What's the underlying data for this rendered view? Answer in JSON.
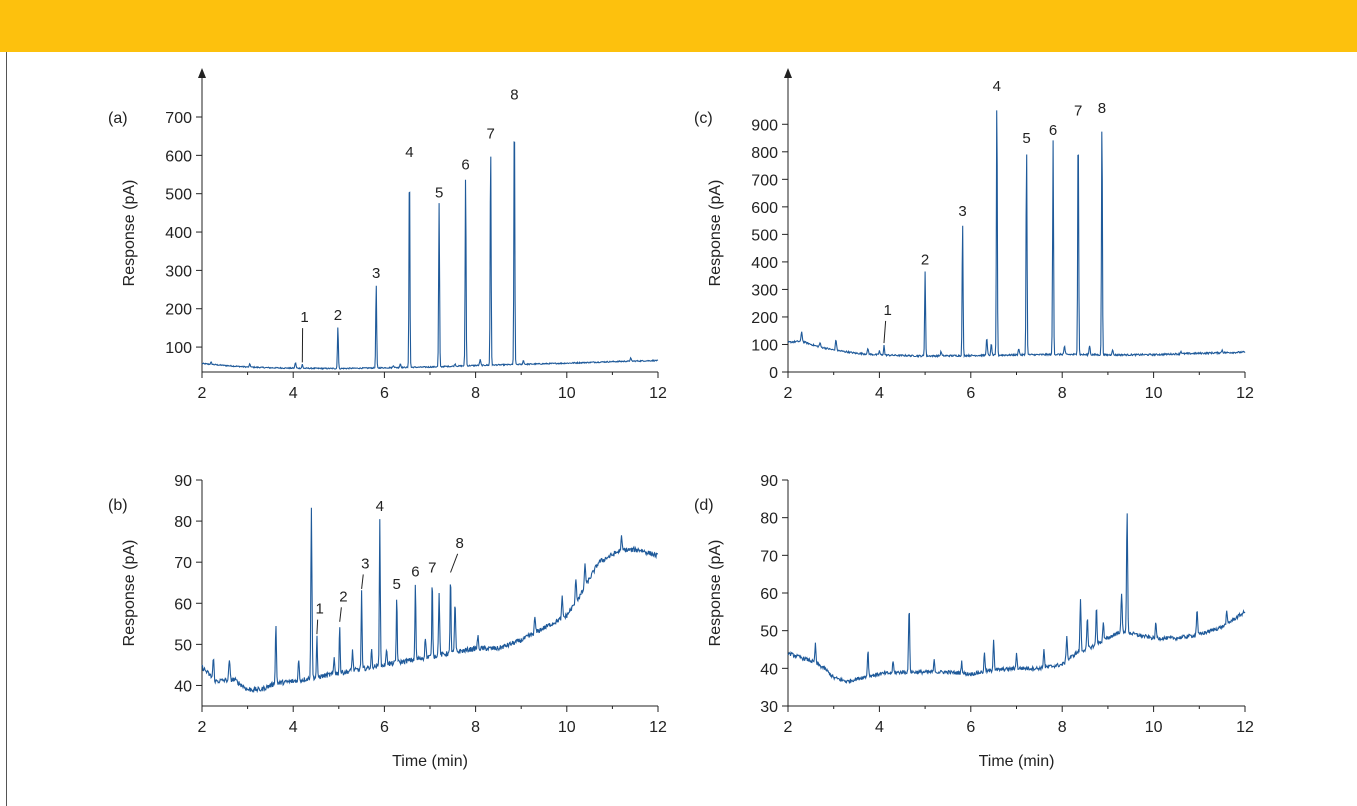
{
  "colors": {
    "band": "#FDC10D",
    "trace": "#1F5A9A",
    "axis": "#222222"
  },
  "chart_data": [
    {
      "panel": "(a)",
      "type": "line",
      "xlabel": "",
      "ylabel": "Response (pA)",
      "xlim": [
        2,
        12
      ],
      "ylim": [
        35,
        760
      ],
      "xticks": [
        2,
        4,
        6,
        8,
        10,
        12
      ],
      "yticks": [
        100,
        200,
        300,
        400,
        500,
        600,
        700
      ],
      "y_arrow": true,
      "grid": false,
      "baseline": [
        [
          2,
          57
        ],
        [
          2.5,
          52
        ],
        [
          3,
          48
        ],
        [
          3.5,
          46
        ],
        [
          4,
          45
        ],
        [
          5,
          44
        ],
        [
          6,
          46
        ],
        [
          7,
          48
        ],
        [
          8,
          52
        ],
        [
          9,
          55
        ],
        [
          10,
          58
        ],
        [
          11,
          62
        ],
        [
          12,
          65
        ]
      ],
      "noise": 1.5,
      "minor_peaks": [
        [
          2.2,
          5
        ],
        [
          3.05,
          8
        ],
        [
          4.05,
          15
        ],
        [
          6.2,
          6
        ],
        [
          6.35,
          10
        ],
        [
          7.55,
          6
        ],
        [
          8.1,
          15
        ],
        [
          9.05,
          10
        ],
        [
          11.4,
          8
        ]
      ],
      "peaks": [
        {
          "label": "1",
          "x": 4.2,
          "y": 55,
          "tx": 4.25,
          "ty": 160
        },
        {
          "label": "2",
          "x": 4.98,
          "y": 155
        },
        {
          "label": "3",
          "x": 5.82,
          "y": 265
        },
        {
          "label": "4",
          "x": 6.55,
          "y": 580
        },
        {
          "label": "5",
          "x": 7.2,
          "y": 475
        },
        {
          "label": "6",
          "x": 7.78,
          "y": 548
        },
        {
          "label": "7",
          "x": 8.33,
          "y": 628
        },
        {
          "label": "8",
          "x": 8.85,
          "y": 730
        }
      ]
    },
    {
      "panel": "(c)",
      "type": "line",
      "xlabel": "",
      "ylabel": "Response (pA)",
      "xlim": [
        2,
        12
      ],
      "ylim": [
        0,
        1000
      ],
      "xticks": [
        2,
        4,
        6,
        8,
        10,
        12
      ],
      "yticks": [
        0,
        100,
        200,
        300,
        400,
        500,
        600,
        700,
        800,
        900
      ],
      "y_arrow": true,
      "grid": false,
      "baseline": [
        [
          2,
          108
        ],
        [
          2.3,
          112
        ],
        [
          2.6,
          95
        ],
        [
          3,
          80
        ],
        [
          3.5,
          68
        ],
        [
          4,
          62
        ],
        [
          5,
          58
        ],
        [
          6,
          60
        ],
        [
          7,
          62
        ],
        [
          8,
          64
        ],
        [
          9,
          62
        ],
        [
          10,
          63
        ],
        [
          11,
          68
        ],
        [
          12,
          72
        ]
      ],
      "noise": 3,
      "minor_peaks": [
        [
          2.3,
          35
        ],
        [
          2.7,
          15
        ],
        [
          3.05,
          40
        ],
        [
          3.75,
          20
        ],
        [
          4.0,
          15
        ],
        [
          5.35,
          15
        ],
        [
          6.35,
          60
        ],
        [
          6.45,
          40
        ],
        [
          7.05,
          25
        ],
        [
          8.05,
          30
        ],
        [
          8.6,
          35
        ],
        [
          9.1,
          20
        ],
        [
          10.6,
          10
        ],
        [
          11.5,
          10
        ]
      ],
      "peaks": [
        {
          "label": "1",
          "x": 4.1,
          "y": 98,
          "tx": 4.18,
          "ty": 200
        },
        {
          "label": "2",
          "x": 5.0,
          "y": 368
        },
        {
          "label": "3",
          "x": 5.82,
          "y": 545
        },
        {
          "label": "4",
          "x": 6.57,
          "y": 1000
        },
        {
          "label": "5",
          "x": 7.22,
          "y": 810
        },
        {
          "label": "6",
          "x": 7.8,
          "y": 840
        },
        {
          "label": "7",
          "x": 8.35,
          "y": 910
        },
        {
          "label": "8",
          "x": 8.87,
          "y": 920
        }
      ]
    },
    {
      "panel": "(b)",
      "type": "line",
      "xlabel": "Time (min)",
      "ylabel": "Response (pA)",
      "xlim": [
        2,
        12
      ],
      "ylim": [
        35,
        90
      ],
      "xticks": [
        2,
        4,
        6,
        8,
        10,
        12
      ],
      "yticks": [
        40,
        50,
        60,
        70,
        80,
        90
      ],
      "y_arrow": false,
      "grid": false,
      "baseline": [
        [
          2,
          44.5
        ],
        [
          2.3,
          41
        ],
        [
          2.7,
          41.5
        ],
        [
          3,
          39
        ],
        [
          3.3,
          39
        ],
        [
          3.6,
          40.5
        ],
        [
          4,
          41
        ],
        [
          4.5,
          42
        ],
        [
          5,
          43
        ],
        [
          5.5,
          44
        ],
        [
          6,
          45
        ],
        [
          6.5,
          46
        ],
        [
          7,
          47
        ],
        [
          7.5,
          48
        ],
        [
          8,
          49
        ],
        [
          8.5,
          49
        ],
        [
          9,
          51
        ],
        [
          9.5,
          54
        ],
        [
          10,
          57
        ],
        [
          10.3,
          62
        ],
        [
          10.7,
          70
        ],
        [
          11.2,
          73
        ],
        [
          11.6,
          73
        ],
        [
          12,
          71.5
        ]
      ],
      "noise": 0.6,
      "minor_peaks": [
        [
          2.25,
          5
        ],
        [
          2.6,
          5
        ],
        [
          3.62,
          14
        ],
        [
          4.12,
          5
        ],
        [
          4.4,
          41
        ],
        [
          4.9,
          4
        ],
        [
          5.3,
          5
        ],
        [
          5.72,
          4
        ],
        [
          6.05,
          4
        ],
        [
          6.9,
          5
        ],
        [
          7.2,
          15
        ],
        [
          7.55,
          12
        ],
        [
          8.05,
          3
        ],
        [
          9.3,
          4
        ],
        [
          9.9,
          5
        ],
        [
          10.2,
          6
        ],
        [
          10.4,
          6
        ],
        [
          11.2,
          3
        ]
      ],
      "peaks": [
        {
          "label": "1",
          "x": 4.52,
          "y": 52,
          "tx": 4.58,
          "ty": 57
        },
        {
          "label": "2",
          "x": 5.02,
          "y": 55,
          "tx": 5.1,
          "ty": 60
        },
        {
          "label": "3",
          "x": 5.5,
          "y": 63,
          "tx": 5.58,
          "ty": 68
        },
        {
          "label": "4",
          "x": 5.9,
          "y": 81
        },
        {
          "label": "5",
          "x": 6.27,
          "y": 62
        },
        {
          "label": "6",
          "x": 6.68,
          "y": 65
        },
        {
          "label": "7",
          "x": 7.05,
          "y": 66
        },
        {
          "label": "8",
          "x": 7.45,
          "y": 67,
          "tx": 7.65,
          "ty": 73
        }
      ]
    },
    {
      "panel": "(d)",
      "type": "line",
      "xlabel": "Time (min)",
      "ylabel": "Response (pA)",
      "xlim": [
        2,
        12
      ],
      "ylim": [
        30,
        90
      ],
      "xticks": [
        2,
        4,
        6,
        8,
        10,
        12
      ],
      "yticks": [
        30,
        40,
        50,
        60,
        70,
        80,
        90
      ],
      "y_arrow": false,
      "grid": false,
      "baseline": [
        [
          2,
          44
        ],
        [
          2.5,
          42
        ],
        [
          2.8,
          40
        ],
        [
          3,
          37.5
        ],
        [
          3.3,
          36.5
        ],
        [
          3.6,
          37.5
        ],
        [
          4,
          38.5
        ],
        [
          4.5,
          39
        ],
        [
          5,
          39
        ],
        [
          5.5,
          39
        ],
        [
          6,
          38.5
        ],
        [
          6.5,
          39.5
        ],
        [
          7,
          40
        ],
        [
          7.5,
          40
        ],
        [
          8,
          41
        ],
        [
          8.3,
          44
        ],
        [
          8.7,
          46
        ],
        [
          9,
          48
        ],
        [
          9.3,
          50
        ],
        [
          9.6,
          49
        ],
        [
          10,
          48
        ],
        [
          10.5,
          48
        ],
        [
          11,
          49
        ],
        [
          11.5,
          51
        ],
        [
          12,
          55
        ]
      ],
      "noise": 0.5,
      "minor_peaks": [
        [
          2.6,
          5
        ],
        [
          3.75,
          7
        ],
        [
          4.3,
          3
        ],
        [
          4.65,
          17
        ],
        [
          5.2,
          3
        ],
        [
          5.8,
          3
        ],
        [
          6.3,
          5
        ],
        [
          6.5,
          8
        ],
        [
          7.0,
          4
        ],
        [
          7.6,
          5
        ],
        [
          8.1,
          7
        ],
        [
          8.4,
          14
        ],
        [
          8.55,
          8
        ],
        [
          8.75,
          10
        ],
        [
          8.9,
          5
        ],
        [
          9.3,
          10
        ],
        [
          9.42,
          32
        ],
        [
          10.05,
          4
        ],
        [
          10.95,
          7
        ],
        [
          11.6,
          3
        ]
      ],
      "peaks": []
    }
  ]
}
